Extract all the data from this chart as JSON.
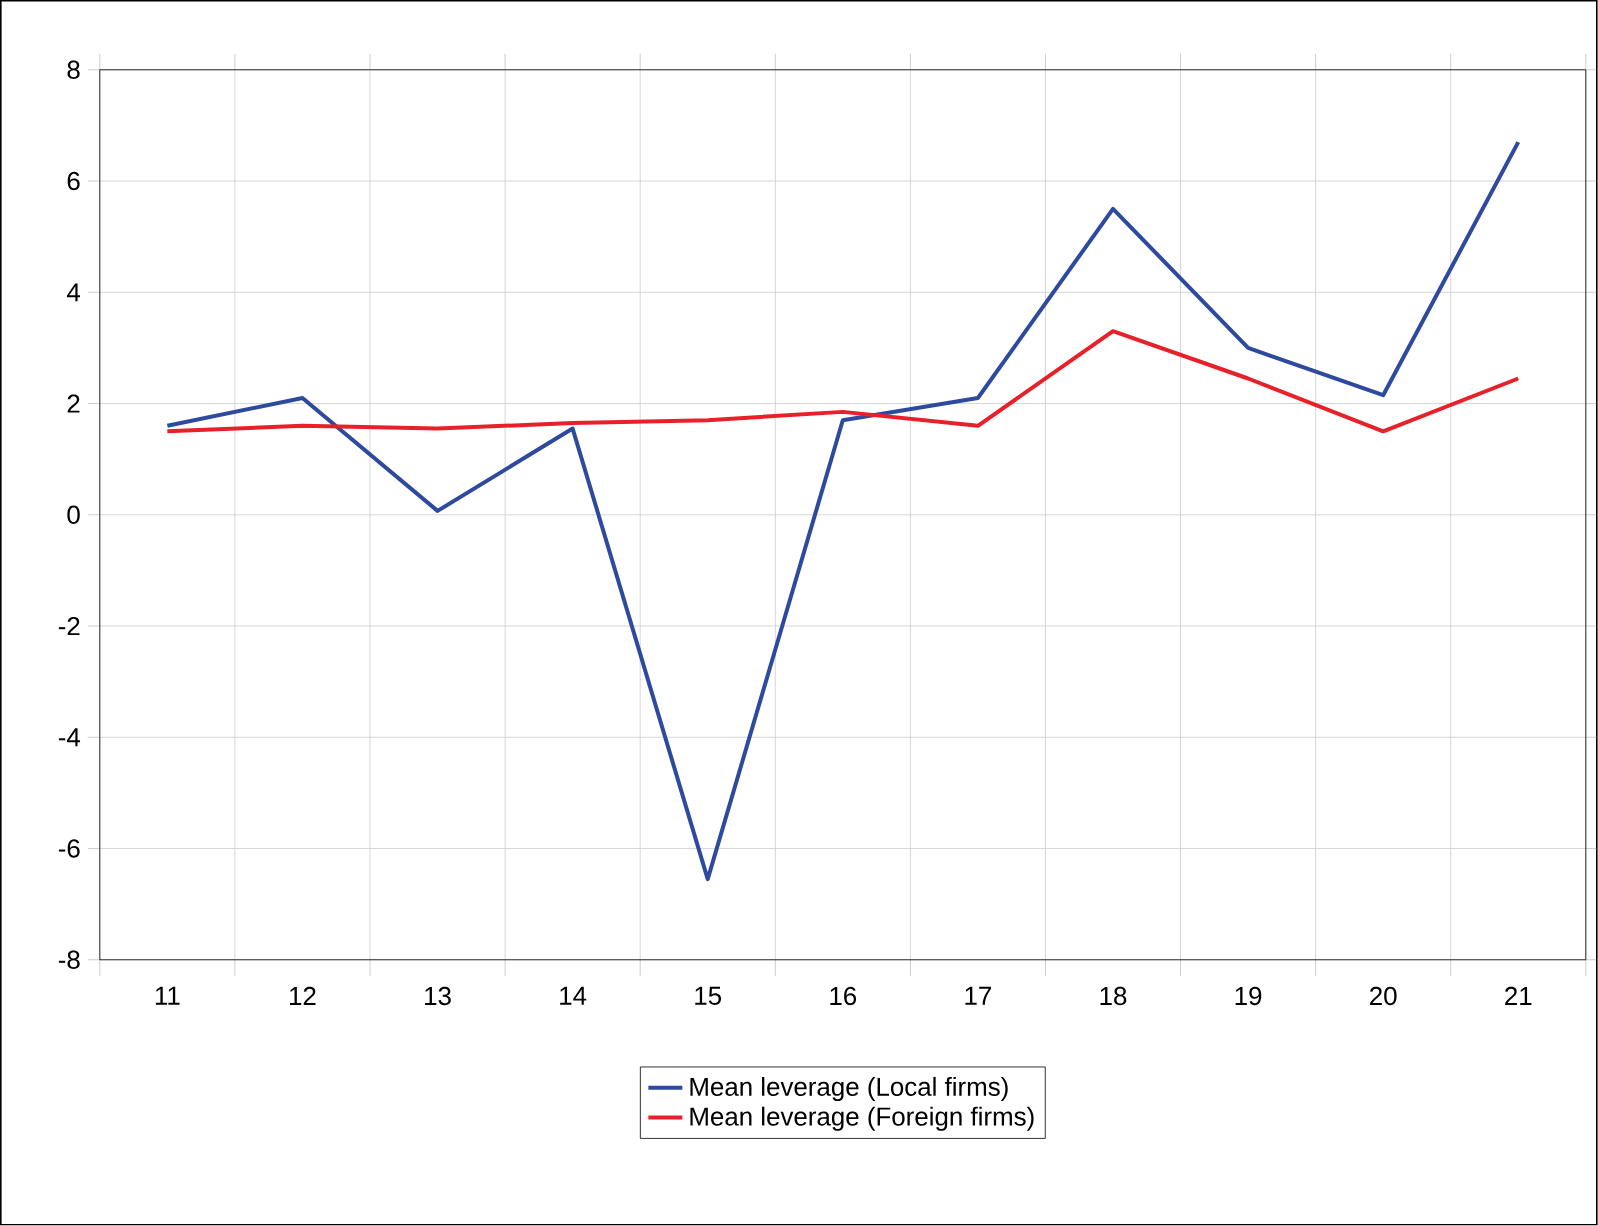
{
  "chart_data": {
    "type": "line",
    "categories": [
      "11",
      "12",
      "13",
      "14",
      "15",
      "16",
      "17",
      "18",
      "19",
      "20",
      "21"
    ],
    "series": [
      {
        "name": "Mean leverage (Local firms)",
        "color": "#2e4a9e",
        "values": [
          1.6,
          2.1,
          0.07,
          1.55,
          -6.55,
          1.7,
          2.1,
          5.5,
          3.0,
          2.15,
          6.7
        ]
      },
      {
        "name": "Mean leverage (Foreign firms)",
        "color": "#e8202a",
        "values": [
          1.5,
          1.6,
          1.55,
          1.65,
          1.7,
          1.85,
          1.6,
          3.3,
          2.45,
          1.5,
          2.45
        ]
      }
    ],
    "ylim": [
      -8,
      8
    ],
    "yticks": [
      -8,
      -6,
      -4,
      -2,
      0,
      2,
      4,
      6,
      8
    ],
    "grid": true,
    "legend": "bottom",
    "marker": "none",
    "line_style": "solid"
  }
}
